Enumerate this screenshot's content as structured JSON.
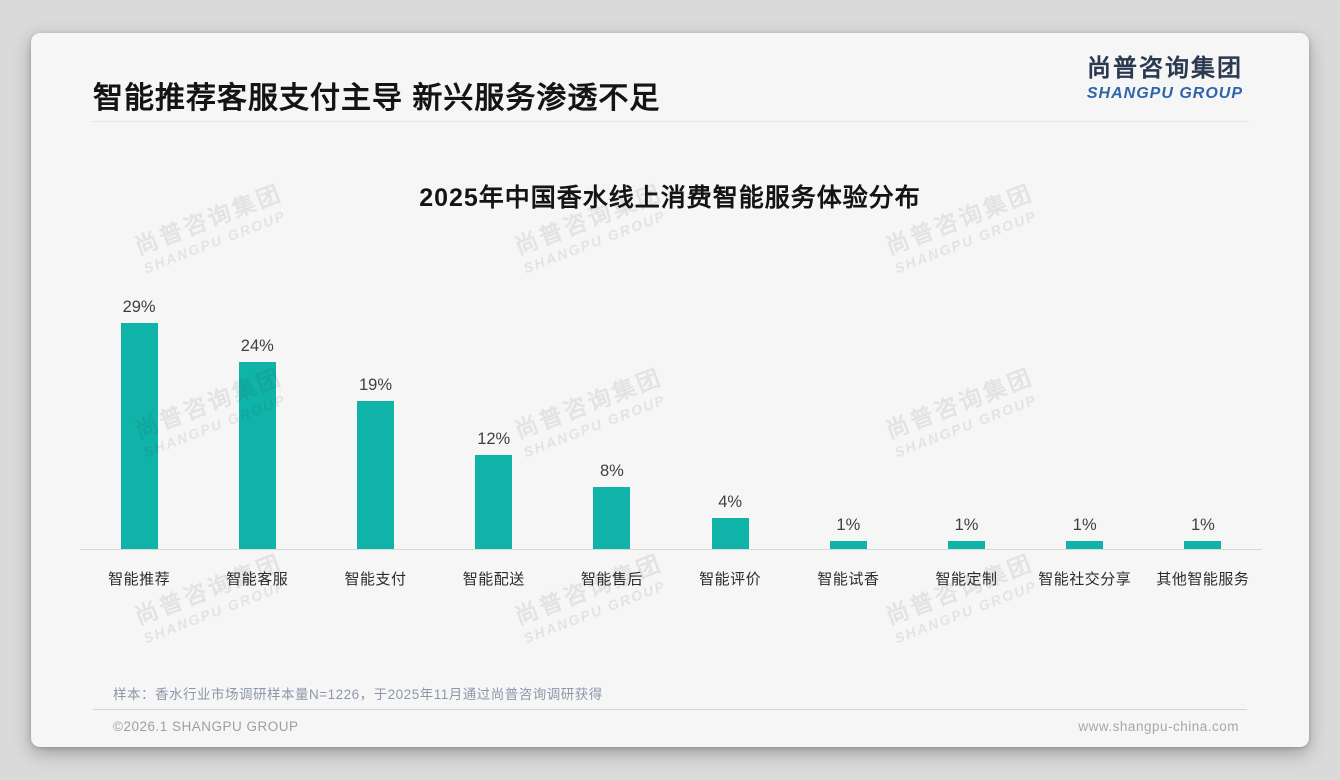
{
  "page": {
    "header": {
      "title": "智能推荐客服支付主导 新兴服务渗透不足",
      "logo": {
        "cn": "尚普咨询集团",
        "en": "SHANGPU GROUP"
      }
    },
    "footer": {
      "note": "样本：香水行业市场调研样本量N=1226，于2025年11月通过尚普咨询调研获得",
      "copyright": "©2026.1 SHANGPU GROUP",
      "website": "www.shangpu-china.com"
    },
    "watermark": {
      "cn": "尚普咨询集团",
      "en": "SHANGPU GROUP"
    }
  },
  "chart_data": {
    "type": "bar",
    "title": "2025年中国香水线上消费智能服务体验分布",
    "categories": [
      "智能推荐",
      "智能客服",
      "智能支付",
      "智能配送",
      "智能售后",
      "智能评价",
      "智能试香",
      "智能定制",
      "智能社交分享",
      "其他智能服务"
    ],
    "values": [
      29,
      24,
      19,
      12,
      8,
      4,
      1,
      1,
      1,
      1
    ],
    "value_labels": [
      "29%",
      "24%",
      "19%",
      "12%",
      "8%",
      "4%",
      "1%",
      "1%",
      "1%",
      "1%"
    ],
    "bar_color": "#0fb3a8",
    "xlabel": "",
    "ylabel": "",
    "ylim": [
      0,
      30
    ],
    "grid": false,
    "legend": false,
    "value_label_color": "#3f3f3f",
    "axis_line_color": "#d9d9d9"
  },
  "colors": {
    "accent_teal": "#0fb3a8",
    "logo_navy": "#2b3950",
    "logo_blue": "#2e65a9",
    "title_black": "#141414",
    "note_gray_blue": "#8d97a8",
    "footer_gray": "#9aa0a6",
    "card_bg": "#f6f6f7",
    "page_bg": "#dadada"
  }
}
